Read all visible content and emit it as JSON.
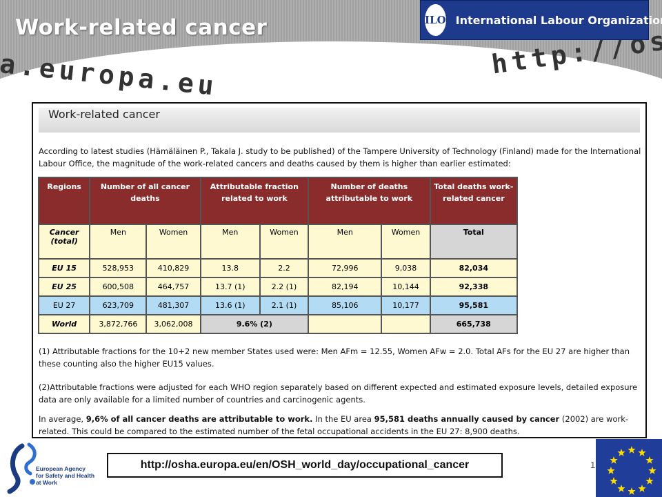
{
  "slide": {
    "title": "Work-related cancer",
    "watermark_left": "a.europa.eu",
    "watermark_right": "http://osha",
    "org_logo_text": "International Labour Organization",
    "org_logo_emblem": "ILO"
  },
  "panel": {
    "heading": "Work-related cancer",
    "intro": "According to latest studies (Hämäläinen P., Takala J. study to be published) of the Tampere University of Technology (Finland) made for the International Labour Office, the magnitude of the work-related cancers and deaths caused by them is higher than earlier estimated:"
  },
  "table": {
    "headers": [
      "Regions",
      "Number of all cancer deaths",
      "Attributable fraction related to work",
      "Number of deaths attributable to work",
      "Total deaths work-related cancer"
    ],
    "subheader": [
      "Cancer (total)",
      "Men",
      "Women",
      "Men",
      "Women",
      "Men",
      "Women",
      "Total"
    ],
    "rows": [
      {
        "region": "EU 15",
        "men_deaths": "528,953",
        "women_deaths": "410,829",
        "af_men": "13.8",
        "af_women": "2.2",
        "work_men": "72,996",
        "work_women": "9,038",
        "total": "82,034"
      },
      {
        "region": "EU 25",
        "men_deaths": "600,508",
        "women_deaths": "464,757",
        "af_men": "13.7 (1)",
        "af_women": "2.2 (1)",
        "work_men": "82,194",
        "work_women": "10,144",
        "total": "92,338"
      },
      {
        "region": "EU 27",
        "men_deaths": "623,709",
        "women_deaths": "481,307",
        "af_men": "13.6 (1)",
        "af_women": "2.1 (1)",
        "work_men": "85,106",
        "work_women": "10,177",
        "total": "95,581"
      },
      {
        "region": "World",
        "men_deaths": "3,872,766",
        "women_deaths": "3,062,008",
        "af_combined": "9.6% (2)",
        "work_men": "",
        "work_women": "",
        "total": "665,738"
      }
    ]
  },
  "notes": {
    "note1": "(1) Attributable fractions for the 10+2 new member States used were: Men AFm = 12.55, Women AFw = 2.0. Total AFs for the EU 27 are higher than these counting also the higher EU15 values.",
    "note2": "(2)Attributable fractions were adjusted for each WHO region separately based on different expected and estimated exposure levels, detailed exposure data are only available for a limited number of countries and carcinogenic agents.",
    "note3_parts": {
      "p1": "In average, ",
      "b1": "9,6% of all cancer deaths are attributable to work.",
      "p2": " In the EU area ",
      "b2": "95,581 deaths annually caused by cancer",
      "p3": " (2002) are work-related. This could be compared to the estimated number of the fetal occupational accidents in the EU 27: 8,900 deaths."
    }
  },
  "footer": {
    "url": "http://osha.europa.eu/en/OSH_world_day/occupational_cancer",
    "agency_line1": "European Agency",
    "agency_line2": "for Safety and Health",
    "agency_line3": "at Work",
    "page_number": "1"
  },
  "colors": {
    "table_header": "#8b2c2c",
    "table_cell": "#fff9d2",
    "eu27_row": "#b3dcf4",
    "total_gray": "#d6d6d6",
    "ilo_blue": "#1e3a8c",
    "eu_flag_blue": "#1f3d99",
    "eu_star": "#ffdd00"
  }
}
